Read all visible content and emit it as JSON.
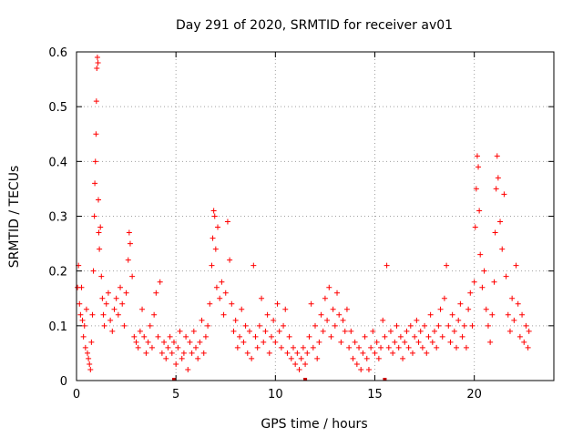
{
  "chart_data": {
    "type": "scatter",
    "title": "Day 291 of 2020, SRMTID for receiver av01",
    "xlabel": "GPS time / hours",
    "ylabel": "SRMTID / TECUs",
    "xlim": [
      0,
      24
    ],
    "ylim": [
      0,
      0.6
    ],
    "xticks": [
      0,
      5,
      10,
      15,
      20
    ],
    "yticks": [
      0,
      0.1,
      0.2,
      0.3,
      0.4,
      0.5,
      0.6
    ],
    "xtick_labels": [
      "0",
      "5",
      "10",
      "15",
      "20"
    ],
    "ytick_labels": [
      "0",
      "0.1",
      "0.2",
      "0.3",
      "0.4",
      "0.5",
      "0.6"
    ],
    "grid": true,
    "marker": "+",
    "series_color": "#ff0000",
    "data_gap_markers_x": [
      4.9,
      11.5,
      15.5
    ],
    "series": [
      {
        "name": "SRMTID",
        "points": [
          [
            0.05,
            0.17
          ],
          [
            0.1,
            0.21
          ],
          [
            0.15,
            0.14
          ],
          [
            0.2,
            0.12
          ],
          [
            0.25,
            0.17
          ],
          [
            0.3,
            0.11
          ],
          [
            0.35,
            0.08
          ],
          [
            0.4,
            0.1
          ],
          [
            0.45,
            0.06
          ],
          [
            0.5,
            0.13
          ],
          [
            0.55,
            0.05
          ],
          [
            0.6,
            0.04
          ],
          [
            0.65,
            0.03
          ],
          [
            0.7,
            0.02
          ],
          [
            0.75,
            0.07
          ],
          [
            0.8,
            0.12
          ],
          [
            0.85,
            0.2
          ],
          [
            0.9,
            0.3
          ],
          [
            0.92,
            0.36
          ],
          [
            0.95,
            0.4
          ],
          [
            0.98,
            0.45
          ],
          [
            1.0,
            0.51
          ],
          [
            1.02,
            0.57
          ],
          [
            1.05,
            0.59
          ],
          [
            1.08,
            0.58
          ],
          [
            1.1,
            0.33
          ],
          [
            1.12,
            0.27
          ],
          [
            1.15,
            0.24
          ],
          [
            1.2,
            0.28
          ],
          [
            1.25,
            0.19
          ],
          [
            1.3,
            0.15
          ],
          [
            1.35,
            0.12
          ],
          [
            1.4,
            0.1
          ],
          [
            1.5,
            0.14
          ],
          [
            1.6,
            0.16
          ],
          [
            1.7,
            0.11
          ],
          [
            1.8,
            0.09
          ],
          [
            1.9,
            0.13
          ],
          [
            2.0,
            0.15
          ],
          [
            2.1,
            0.12
          ],
          [
            2.2,
            0.17
          ],
          [
            2.3,
            0.14
          ],
          [
            2.4,
            0.1
          ],
          [
            2.5,
            0.16
          ],
          [
            2.6,
            0.22
          ],
          [
            2.65,
            0.27
          ],
          [
            2.7,
            0.25
          ],
          [
            2.8,
            0.19
          ],
          [
            2.9,
            0.08
          ],
          [
            3.0,
            0.07
          ],
          [
            3.1,
            0.06
          ],
          [
            3.2,
            0.09
          ],
          [
            3.3,
            0.13
          ],
          [
            3.4,
            0.08
          ],
          [
            3.5,
            0.05
          ],
          [
            3.6,
            0.07
          ],
          [
            3.7,
            0.1
          ],
          [
            3.8,
            0.06
          ],
          [
            3.9,
            0.12
          ],
          [
            4.0,
            0.16
          ],
          [
            4.1,
            0.08
          ],
          [
            4.2,
            0.18
          ],
          [
            4.3,
            0.05
          ],
          [
            4.4,
            0.07
          ],
          [
            4.5,
            0.04
          ],
          [
            4.6,
            0.06
          ],
          [
            4.7,
            0.08
          ],
          [
            4.8,
            0.05
          ],
          [
            4.9,
            0.07
          ],
          [
            5.0,
            0.03
          ],
          [
            5.1,
            0.06
          ],
          [
            5.2,
            0.09
          ],
          [
            5.3,
            0.04
          ],
          [
            5.4,
            0.05
          ],
          [
            5.5,
            0.08
          ],
          [
            5.6,
            0.02
          ],
          [
            5.7,
            0.07
          ],
          [
            5.8,
            0.05
          ],
          [
            5.9,
            0.09
          ],
          [
            6.0,
            0.06
          ],
          [
            6.1,
            0.04
          ],
          [
            6.2,
            0.07
          ],
          [
            6.3,
            0.11
          ],
          [
            6.4,
            0.05
          ],
          [
            6.5,
            0.08
          ],
          [
            6.6,
            0.1
          ],
          [
            6.7,
            0.14
          ],
          [
            6.8,
            0.21
          ],
          [
            6.85,
            0.26
          ],
          [
            6.9,
            0.31
          ],
          [
            6.95,
            0.3
          ],
          [
            7.0,
            0.24
          ],
          [
            7.05,
            0.17
          ],
          [
            7.1,
            0.28
          ],
          [
            7.2,
            0.15
          ],
          [
            7.3,
            0.18
          ],
          [
            7.4,
            0.12
          ],
          [
            7.5,
            0.16
          ],
          [
            7.6,
            0.29
          ],
          [
            7.7,
            0.22
          ],
          [
            7.8,
            0.14
          ],
          [
            7.9,
            0.09
          ],
          [
            8.0,
            0.11
          ],
          [
            8.1,
            0.06
          ],
          [
            8.2,
            0.08
          ],
          [
            8.3,
            0.13
          ],
          [
            8.4,
            0.07
          ],
          [
            8.5,
            0.1
          ],
          [
            8.6,
            0.05
          ],
          [
            8.7,
            0.09
          ],
          [
            8.8,
            0.04
          ],
          [
            8.9,
            0.21
          ],
          [
            9.0,
            0.08
          ],
          [
            9.1,
            0.06
          ],
          [
            9.2,
            0.1
          ],
          [
            9.3,
            0.15
          ],
          [
            9.4,
            0.07
          ],
          [
            9.5,
            0.09
          ],
          [
            9.6,
            0.12
          ],
          [
            9.7,
            0.05
          ],
          [
            9.8,
            0.08
          ],
          [
            9.9,
            0.11
          ],
          [
            10.0,
            0.07
          ],
          [
            10.1,
            0.14
          ],
          [
            10.2,
            0.09
          ],
          [
            10.3,
            0.06
          ],
          [
            10.4,
            0.1
          ],
          [
            10.5,
            0.13
          ],
          [
            10.6,
            0.05
          ],
          [
            10.7,
            0.08
          ],
          [
            10.8,
            0.04
          ],
          [
            10.9,
            0.06
          ],
          [
            11.0,
            0.03
          ],
          [
            11.1,
            0.05
          ],
          [
            11.2,
            0.02
          ],
          [
            11.3,
            0.04
          ],
          [
            11.4,
            0.06
          ],
          [
            11.5,
            0.03
          ],
          [
            11.6,
            0.05
          ],
          [
            11.7,
            0.08
          ],
          [
            11.8,
            0.14
          ],
          [
            11.9,
            0.06
          ],
          [
            12.0,
            0.1
          ],
          [
            12.1,
            0.04
          ],
          [
            12.2,
            0.07
          ],
          [
            12.3,
            0.12
          ],
          [
            12.4,
            0.09
          ],
          [
            12.5,
            0.15
          ],
          [
            12.6,
            0.11
          ],
          [
            12.7,
            0.17
          ],
          [
            12.8,
            0.08
          ],
          [
            12.9,
            0.13
          ],
          [
            13.0,
            0.1
          ],
          [
            13.1,
            0.16
          ],
          [
            13.2,
            0.12
          ],
          [
            13.3,
            0.07
          ],
          [
            13.4,
            0.11
          ],
          [
            13.5,
            0.09
          ],
          [
            13.6,
            0.13
          ],
          [
            13.7,
            0.06
          ],
          [
            13.8,
            0.09
          ],
          [
            13.9,
            0.04
          ],
          [
            14.0,
            0.07
          ],
          [
            14.1,
            0.03
          ],
          [
            14.2,
            0.06
          ],
          [
            14.3,
            0.02
          ],
          [
            14.4,
            0.05
          ],
          [
            14.5,
            0.08
          ],
          [
            14.6,
            0.04
          ],
          [
            14.7,
            0.02
          ],
          [
            14.8,
            0.06
          ],
          [
            14.9,
            0.09
          ],
          [
            15.0,
            0.05
          ],
          [
            15.1,
            0.07
          ],
          [
            15.2,
            0.04
          ],
          [
            15.3,
            0.06
          ],
          [
            15.4,
            0.11
          ],
          [
            15.5,
            0.08
          ],
          [
            15.6,
            0.21
          ],
          [
            15.7,
            0.06
          ],
          [
            15.8,
            0.09
          ],
          [
            15.9,
            0.05
          ],
          [
            16.0,
            0.07
          ],
          [
            16.1,
            0.1
          ],
          [
            16.2,
            0.06
          ],
          [
            16.3,
            0.08
          ],
          [
            16.4,
            0.04
          ],
          [
            16.5,
            0.07
          ],
          [
            16.6,
            0.09
          ],
          [
            16.7,
            0.06
          ],
          [
            16.8,
            0.1
          ],
          [
            16.9,
            0.05
          ],
          [
            17.0,
            0.08
          ],
          [
            17.1,
            0.11
          ],
          [
            17.2,
            0.07
          ],
          [
            17.3,
            0.09
          ],
          [
            17.4,
            0.06
          ],
          [
            17.5,
            0.1
          ],
          [
            17.6,
            0.05
          ],
          [
            17.7,
            0.08
          ],
          [
            17.8,
            0.12
          ],
          [
            17.9,
            0.07
          ],
          [
            18.0,
            0.09
          ],
          [
            18.1,
            0.06
          ],
          [
            18.2,
            0.1
          ],
          [
            18.3,
            0.13
          ],
          [
            18.4,
            0.08
          ],
          [
            18.5,
            0.15
          ],
          [
            18.6,
            0.21
          ],
          [
            18.7,
            0.1
          ],
          [
            18.8,
            0.07
          ],
          [
            18.9,
            0.12
          ],
          [
            19.0,
            0.09
          ],
          [
            19.1,
            0.06
          ],
          [
            19.2,
            0.11
          ],
          [
            19.3,
            0.14
          ],
          [
            19.4,
            0.08
          ],
          [
            19.5,
            0.1
          ],
          [
            19.6,
            0.06
          ],
          [
            19.7,
            0.13
          ],
          [
            19.8,
            0.16
          ],
          [
            19.9,
            0.1
          ],
          [
            20.0,
            0.18
          ],
          [
            20.05,
            0.28
          ],
          [
            20.1,
            0.35
          ],
          [
            20.15,
            0.41
          ],
          [
            20.2,
            0.39
          ],
          [
            20.25,
            0.31
          ],
          [
            20.3,
            0.23
          ],
          [
            20.4,
            0.17
          ],
          [
            20.5,
            0.2
          ],
          [
            20.6,
            0.13
          ],
          [
            20.7,
            0.1
          ],
          [
            20.8,
            0.07
          ],
          [
            20.9,
            0.12
          ],
          [
            21.0,
            0.18
          ],
          [
            21.05,
            0.27
          ],
          [
            21.1,
            0.35
          ],
          [
            21.15,
            0.41
          ],
          [
            21.2,
            0.37
          ],
          [
            21.3,
            0.29
          ],
          [
            21.4,
            0.24
          ],
          [
            21.5,
            0.34
          ],
          [
            21.6,
            0.19
          ],
          [
            21.7,
            0.12
          ],
          [
            21.8,
            0.09
          ],
          [
            21.9,
            0.15
          ],
          [
            22.0,
            0.11
          ],
          [
            22.1,
            0.21
          ],
          [
            22.2,
            0.14
          ],
          [
            22.3,
            0.08
          ],
          [
            22.4,
            0.12
          ],
          [
            22.5,
            0.07
          ],
          [
            22.6,
            0.1
          ],
          [
            22.7,
            0.06
          ],
          [
            22.75,
            0.09
          ]
        ]
      }
    ]
  }
}
